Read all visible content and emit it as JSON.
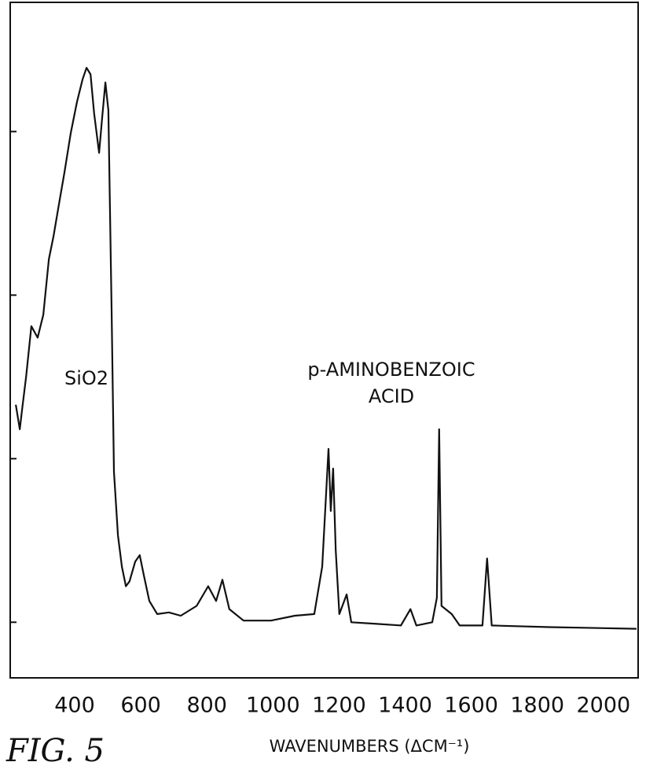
{
  "chart_data": {
    "type": "line",
    "caption": "FIG. 5",
    "xlabel": "WAVENUMBERS (ΔCM⁻¹)",
    "annotations": [
      "SiO2",
      "p-AMINOBENZOIC",
      "ACID"
    ],
    "xlim": [
      205,
      2105
    ],
    "xticks": [
      400,
      600,
      800,
      1000,
      1200,
      1400,
      1600,
      1800,
      2000
    ],
    "ylim": [
      0.66,
      4.79
    ],
    "yticks": [
      1,
      2,
      3,
      4
    ],
    "series": [
      {
        "color": "#111111",
        "x": [
          222,
          234,
          241,
          253,
          269,
          288,
          305,
          322,
          336,
          352,
          369,
          388,
          407,
          424,
          436,
          448,
          459,
          474,
          483,
          493,
          502,
          512,
          519,
          531,
          543,
          555,
          566,
          583,
          597,
          609,
          626,
          650,
          685,
          721,
          769,
          804,
          828,
          847,
          868,
          911,
          994,
          1066,
          1125,
          1149,
          1168,
          1175,
          1182,
          1190,
          1201,
          1223,
          1237,
          1315,
          1387,
          1416,
          1434,
          1482,
          1496,
          1503,
          1510,
          1541,
          1565,
          1634,
          1648,
          1662,
          1838,
          2100
        ],
        "values": [
          2.33,
          2.18,
          2.3,
          2.5,
          2.81,
          2.74,
          2.88,
          3.22,
          3.36,
          3.55,
          3.75,
          3.99,
          4.18,
          4.32,
          4.39,
          4.35,
          4.11,
          3.87,
          4.08,
          4.3,
          4.13,
          2.88,
          1.92,
          1.53,
          1.34,
          1.22,
          1.25,
          1.37,
          1.41,
          1.29,
          1.13,
          1.05,
          1.06,
          1.04,
          1.1,
          1.22,
          1.13,
          1.26,
          1.08,
          1.01,
          1.01,
          1.04,
          1.05,
          1.34,
          2.06,
          1.68,
          1.94,
          1.44,
          1.05,
          1.17,
          1.0,
          0.99,
          0.98,
          1.08,
          0.98,
          1.0,
          1.15,
          2.18,
          1.1,
          1.05,
          0.98,
          0.98,
          1.39,
          0.98,
          0.97,
          0.96
        ]
      }
    ]
  }
}
